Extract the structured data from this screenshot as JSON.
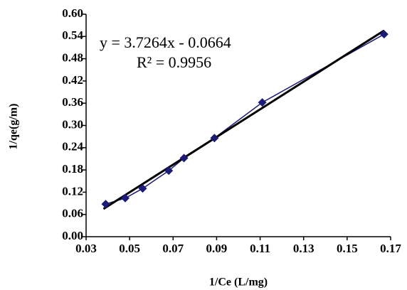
{
  "chart_data": {
    "type": "scatter",
    "x_label": "1/Ce (L/mg)",
    "y_label": "1/qe(g/m)",
    "annotations": [
      "y = 3.7264x - 0.0664",
      "R² = 0.9956"
    ],
    "series": [
      {
        "color": "#1c1c78",
        "x": [
          0.039,
          0.048,
          0.056,
          0.068,
          0.075,
          0.089,
          0.111,
          0.167
        ],
        "values": [
          0.088,
          0.104,
          0.13,
          0.178,
          0.212,
          0.266,
          0.362,
          0.546
        ]
      }
    ],
    "trendline": {
      "color": "#000000",
      "x": [
        0.038,
        0.167
      ],
      "values": [
        0.075,
        0.556
      ]
    },
    "xlim": [
      0.03,
      0.17
    ],
    "ylim": [
      0,
      0.6
    ],
    "xticks": [
      0.03,
      0.05,
      0.07,
      0.09,
      0.11,
      0.13,
      0.15,
      0.17
    ],
    "yticks": [
      {
        "value": 0,
        "label": "0.00"
      },
      0.06,
      0.12,
      0.18,
      0.24,
      {
        "value": 0.3,
        "label": "0.30"
      },
      0.36,
      0.42,
      0.48,
      0.54,
      {
        "value": 0.6,
        "label": "0.60"
      }
    ],
    "grid": false
  }
}
